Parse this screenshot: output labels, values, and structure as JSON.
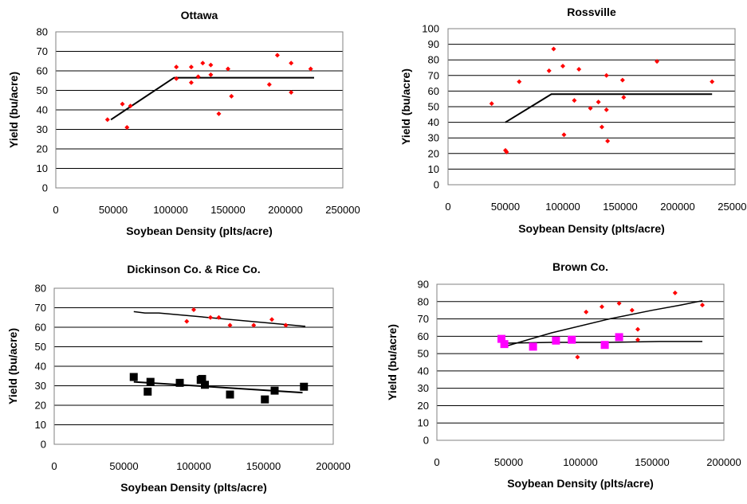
{
  "chart_data": [
    {
      "type": "scatter",
      "title": "Ottawa",
      "xlabel": "Soybean Density (plts/acre)",
      "ylabel": "Yield (bu/acre)",
      "xlim": [
        0,
        250000
      ],
      "ylim": [
        0,
        80
      ],
      "xticks": [
        0,
        50000,
        100000,
        150000,
        200000,
        250000
      ],
      "yticks": [
        0,
        10,
        20,
        30,
        40,
        50,
        60,
        70,
        80
      ],
      "grid": true,
      "series": [
        {
          "marker": "diamond",
          "color": "#ff0000",
          "points": [
            [
              45000,
              35
            ],
            [
              58000,
              43
            ],
            [
              62000,
              31
            ],
            [
              65000,
              42
            ],
            [
              105000,
              56
            ],
            [
              105000,
              62
            ],
            [
              118000,
              62
            ],
            [
              118000,
              54
            ],
            [
              124000,
              57
            ],
            [
              128000,
              64
            ],
            [
              135000,
              63
            ],
            [
              135000,
              58
            ],
            [
              142000,
              38
            ],
            [
              150000,
              61
            ],
            [
              153000,
              47
            ],
            [
              186000,
              53
            ],
            [
              193000,
              68
            ],
            [
              205000,
              64
            ],
            [
              205000,
              49
            ],
            [
              222000,
              61
            ]
          ]
        }
      ],
      "fit_lines": [
        {
          "color": "#000000",
          "width": 2,
          "points": [
            [
              48000,
              35
            ],
            [
              103000,
              56.5
            ],
            [
              225000,
              56.5
            ]
          ]
        }
      ]
    },
    {
      "type": "scatter",
      "title": "Rossville",
      "xlabel": "Soybean Density (plts/acre)",
      "ylabel": "Yield (bu/acre)",
      "xlim": [
        0,
        250000
      ],
      "ylim": [
        0,
        100
      ],
      "xticks": [
        0,
        50000,
        100000,
        150000,
        200000,
        250000
      ],
      "yticks": [
        0,
        10,
        20,
        30,
        40,
        50,
        60,
        70,
        80,
        90,
        100
      ],
      "grid": true,
      "series": [
        {
          "marker": "diamond",
          "color": "#ff0000",
          "points": [
            [
              38000,
              52
            ],
            [
              50000,
              22
            ],
            [
              51000,
              21
            ],
            [
              62000,
              66
            ],
            [
              88000,
              73
            ],
            [
              92000,
              87
            ],
            [
              100000,
              76
            ],
            [
              101000,
              32
            ],
            [
              110000,
              54
            ],
            [
              114000,
              74
            ],
            [
              124000,
              49
            ],
            [
              131000,
              53
            ],
            [
              134000,
              37
            ],
            [
              138000,
              48
            ],
            [
              138000,
              70
            ],
            [
              139000,
              28
            ],
            [
              152000,
              67
            ],
            [
              153000,
              56
            ],
            [
              182000,
              79
            ],
            [
              230000,
              66
            ]
          ]
        }
      ],
      "fit_lines": [
        {
          "color": "#000000",
          "width": 2,
          "points": [
            [
              50000,
              40
            ],
            [
              90000,
              58
            ],
            [
              230000,
              58
            ]
          ]
        }
      ]
    },
    {
      "type": "scatter",
      "title": "Dickinson Co. & Rice Co.",
      "xlabel": "Soybean Density (plts/acre)",
      "ylabel": "Yield (bu/acre)",
      "xlim": [
        0,
        200000
      ],
      "ylim": [
        0,
        80
      ],
      "xticks": [
        0,
        50000,
        100000,
        150000,
        200000
      ],
      "yticks": [
        0,
        10,
        20,
        30,
        40,
        50,
        60,
        70,
        80
      ],
      "grid": true,
      "series": [
        {
          "marker": "diamond",
          "color": "#ff0000",
          "points": [
            [
              95000,
              63
            ],
            [
              100000,
              69
            ],
            [
              112000,
              65
            ],
            [
              118000,
              65
            ],
            [
              126000,
              61
            ],
            [
              143000,
              61
            ],
            [
              156000,
              64
            ],
            [
              166000,
              61
            ]
          ]
        },
        {
          "marker": "square",
          "color": "#000000",
          "points": [
            [
              57000,
              34.5
            ],
            [
              67000,
              27
            ],
            [
              69000,
              32
            ],
            [
              90000,
              31.5
            ],
            [
              105000,
              33
            ],
            [
              106000,
              33.5
            ],
            [
              108000,
              30.5
            ],
            [
              126000,
              25.5
            ],
            [
              151000,
              23
            ],
            [
              158000,
              27.5
            ],
            [
              179000,
              29.5
            ]
          ]
        }
      ],
      "fit_lines": [
        {
          "color": "#000000",
          "width": 1.5,
          "points": [
            [
              57000,
              68
            ],
            [
              65000,
              67.3
            ],
            [
              75000,
              67.3
            ],
            [
              180000,
              60.5
            ]
          ]
        },
        {
          "color": "#000000",
          "width": 2,
          "points": [
            [
              57000,
              32
            ],
            [
              178000,
              26.5
            ]
          ]
        }
      ]
    },
    {
      "type": "scatter",
      "title": "Brown Co.",
      "xlabel": "Soybean Density (plts/acre)",
      "ylabel": "Yield (bu/acre)",
      "xlim": [
        0,
        200000
      ],
      "ylim": [
        0,
        90
      ],
      "xticks": [
        0,
        50000,
        100000,
        150000,
        200000
      ],
      "yticks": [
        0,
        10,
        20,
        30,
        40,
        50,
        60,
        70,
        80,
        90
      ],
      "grid": true,
      "series": [
        {
          "marker": "diamond",
          "color": "#ff0000",
          "points": [
            [
              98000,
              48
            ],
            [
              104000,
              74
            ],
            [
              115000,
              77
            ],
            [
              127000,
              79
            ],
            [
              136000,
              75
            ],
            [
              140000,
              64
            ],
            [
              140000,
              58
            ],
            [
              166000,
              85
            ],
            [
              185000,
              78
            ]
          ]
        },
        {
          "marker": "square",
          "color": "#ff00ff",
          "points": [
            [
              45000,
              58.5
            ],
            [
              47000,
              55.5
            ],
            [
              67000,
              54
            ],
            [
              83000,
              57.5
            ],
            [
              94000,
              58
            ],
            [
              117000,
              55
            ],
            [
              127000,
              59.5
            ]
          ]
        }
      ],
      "fit_lines": [
        {
          "color": "#000000",
          "width": 1.5,
          "points": [
            [
              47000,
              54
            ],
            [
              80000,
              62
            ],
            [
              120000,
              70
            ],
            [
              150000,
              75
            ],
            [
              170000,
              78
            ],
            [
              185000,
              80.5
            ]
          ]
        },
        {
          "color": "#000000",
          "width": 1.5,
          "points": [
            [
              47000,
              56
            ],
            [
              80000,
              56.5
            ],
            [
              120000,
              56.5
            ],
            [
              155000,
              57
            ],
            [
              185000,
              57
            ]
          ]
        }
      ]
    }
  ]
}
